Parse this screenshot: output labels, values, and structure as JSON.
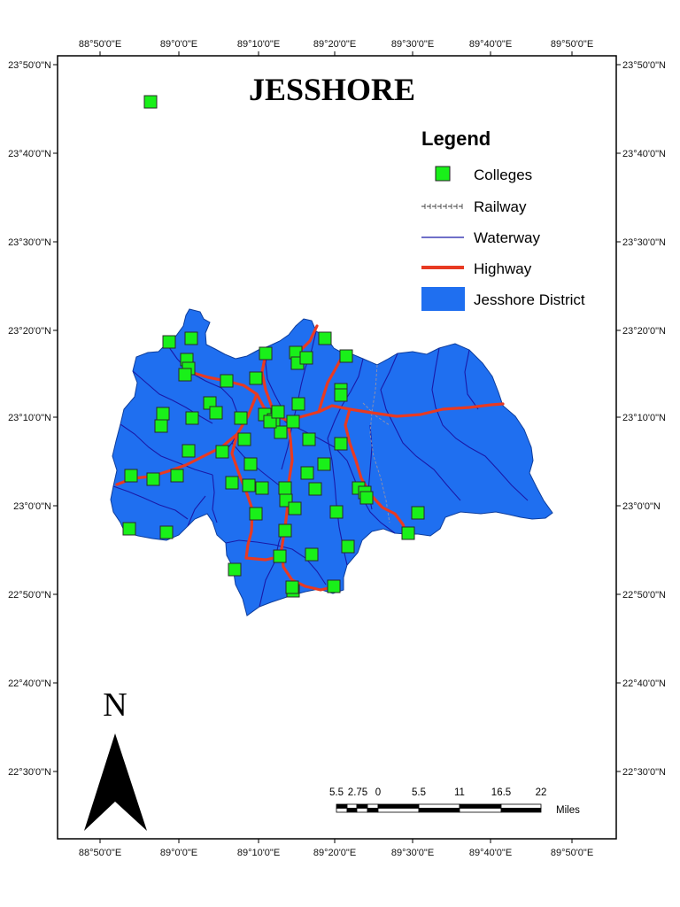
{
  "title": "JESSHORE",
  "legend": {
    "title": "Legend",
    "items": [
      {
        "label": "Colleges",
        "symbol": "green-square-icon"
      },
      {
        "label": "Railway",
        "symbol": "railway-line-icon"
      },
      {
        "label": "Waterway",
        "symbol": "waterway-line-icon"
      },
      {
        "label": "Highway",
        "symbol": "highway-line-icon"
      },
      {
        "label": "Jesshore District",
        "symbol": "district-fill-icon"
      }
    ]
  },
  "graticule": {
    "longitudes": [
      "88°50'0\"E",
      "89°0'0\"E",
      "89°10'0\"E",
      "89°20'0\"E",
      "89°30'0\"E",
      "89°40'0\"E",
      "89°50'0\"E"
    ],
    "latitudes": [
      "23°50'0\"N",
      "23°40'0\"N",
      "23°30'0\"N",
      "23°20'0\"N",
      "23°10'0\"N",
      "23°0'0\"N",
      "22°50'0\"N",
      "22°40'0\"N",
      "22°30'0\"N"
    ]
  },
  "north_arrow": {
    "label": "N"
  },
  "scale_bar": {
    "ticks": [
      "5.5",
      "2.75",
      "0",
      "5.5",
      "11",
      "16.5",
      "22"
    ],
    "unit": "Miles"
  },
  "colors": {
    "district": "#1f6ff0",
    "district_outline": "#0d3d9c",
    "waterway": "#1a1aa8",
    "highway": "#e83a22",
    "college": "#19f019",
    "railway": "#333333"
  }
}
